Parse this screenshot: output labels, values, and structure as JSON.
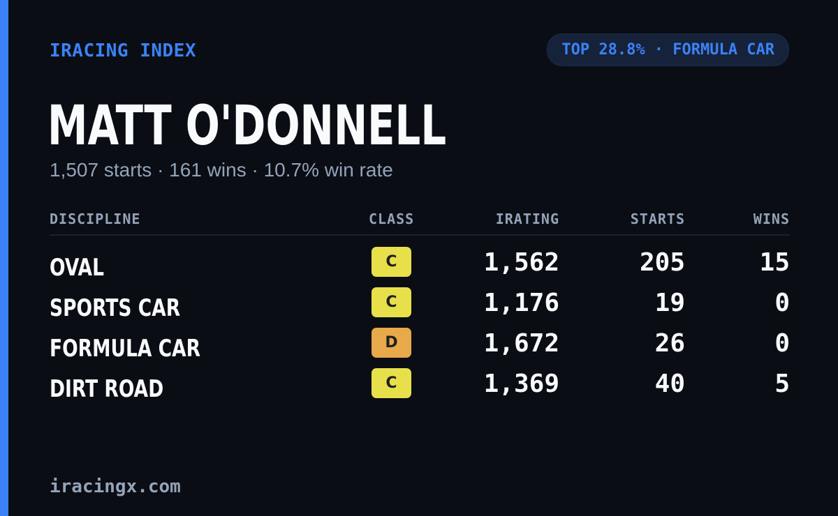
{
  "brand": "IRACING INDEX",
  "pill": "TOP 28.8% · FORMULA CAR",
  "driver": {
    "name": "MATT O'DONNELL",
    "summary": "1,507 starts · 161 wins · 10.7% win rate"
  },
  "table": {
    "headers": {
      "discipline": "DISCIPLINE",
      "class": "CLASS",
      "irating": "IRATING",
      "starts": "STARTS",
      "wins": "WINS"
    },
    "rows": [
      {
        "discipline": "OVAL",
        "class": "C",
        "class_color": "#e8e04a",
        "irating": "1,562",
        "starts": "205",
        "wins": "15"
      },
      {
        "discipline": "SPORTS CAR",
        "class": "C",
        "class_color": "#e8e04a",
        "irating": "1,176",
        "starts": "19",
        "wins": "0"
      },
      {
        "discipline": "FORMULA CAR",
        "class": "D",
        "class_color": "#e8a94a",
        "irating": "1,672",
        "starts": "26",
        "wins": "0"
      },
      {
        "discipline": "DIRT ROAD",
        "class": "C",
        "class_color": "#e8e04a",
        "irating": "1,369",
        "starts": "40",
        "wins": "5"
      }
    ]
  },
  "footer": "iracingx.com",
  "colors": {
    "accent": "#3b82f6",
    "background": "#0a0d14",
    "muted_text": "#94a3b8"
  }
}
